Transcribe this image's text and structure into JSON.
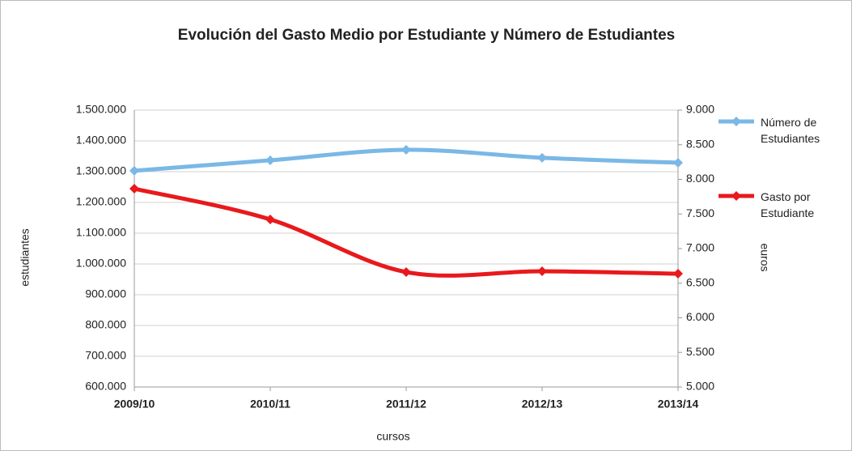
{
  "chart_data": {
    "type": "line",
    "title": "Evolución del Gasto Medio por Estudiante y Número de Estudiantes",
    "xlabel": "cursos",
    "ylabel": "estudiantes",
    "y2label": "euros",
    "categories": [
      "2009/10",
      "2010/11",
      "2011/12",
      "2012/13",
      "2013/14"
    ],
    "series": [
      {
        "name": "Número de Estudiantes",
        "color": "#7ab8e6",
        "values": [
          1303000,
          1337000,
          1371000,
          1345000,
          1329000
        ]
      },
      {
        "name": "Gasto por Estudiante",
        "color": "#e8191c",
        "axis": "y2",
        "values": [
          7865,
          7421,
          6661,
          6672,
          6637
        ]
      }
    ],
    "ylim": [
      600000,
      1500000
    ],
    "yticks": [
      {
        "value": 600000,
        "label": "600.000"
      },
      {
        "value": 700000,
        "label": "700.000"
      },
      {
        "value": 800000,
        "label": "800.000"
      },
      {
        "value": 900000,
        "label": "900.000"
      },
      {
        "value": 1000000,
        "label": "1.000.000"
      },
      {
        "value": 1100000,
        "label": "1.100.000"
      },
      {
        "value": 1200000,
        "label": "1.200.000"
      },
      {
        "value": 1300000,
        "label": "1.300.000"
      },
      {
        "value": 1400000,
        "label": "1.400.000"
      },
      {
        "value": 1500000,
        "label": "1.500.000"
      }
    ],
    "y2lim": [
      5000,
      9000
    ],
    "y2ticks": [
      {
        "value": 5000,
        "label": "5.000"
      },
      {
        "value": 5500,
        "label": "5.500"
      },
      {
        "value": 6000,
        "label": "6.000"
      },
      {
        "value": 6500,
        "label": "6.500"
      },
      {
        "value": 7000,
        "label": "7.000"
      },
      {
        "value": 7500,
        "label": "7.500"
      },
      {
        "value": 8000,
        "label": "8.000"
      },
      {
        "value": 8500,
        "label": "8.500"
      },
      {
        "value": 9000,
        "label": "9.000"
      }
    ],
    "grid": true,
    "legend": "right"
  }
}
